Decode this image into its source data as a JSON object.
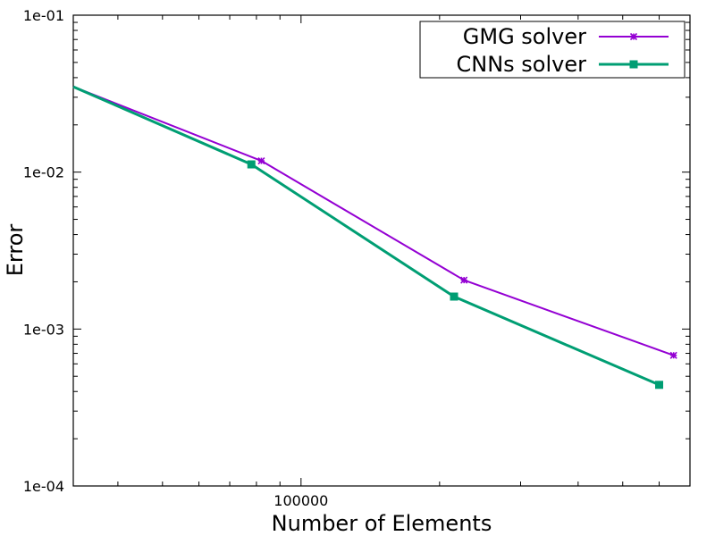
{
  "chart_data": {
    "type": "line",
    "xlabel": "Number of Elements",
    "ylabel": "Error",
    "x_scale": "log",
    "y_scale": "log",
    "xlim": [
      32000,
      700000
    ],
    "ylim": [
      0.0001,
      0.1
    ],
    "x_ticks": [
      {
        "value": 100000,
        "label": "100000"
      }
    ],
    "y_ticks": [
      {
        "value": 0.1,
        "label": "1e-01"
      },
      {
        "value": 0.01,
        "label": "1e-02"
      },
      {
        "value": 0.001,
        "label": "1e-03"
      },
      {
        "value": 0.0001,
        "label": "1e-04"
      }
    ],
    "grid": false,
    "legend_position": "top-right",
    "series": [
      {
        "name": "GMG solver",
        "color": "#9400d3",
        "marker": "star",
        "x": [
          32000,
          82000,
          226000,
          645000
        ],
        "y": [
          0.035,
          0.0118,
          0.00205,
          0.00068
        ]
      },
      {
        "name": "CNNs solver",
        "color": "#009e73",
        "marker": "square",
        "x": [
          32000,
          78000,
          215000,
          600000
        ],
        "y": [
          0.035,
          0.0112,
          0.00161,
          0.000441
        ]
      }
    ]
  }
}
